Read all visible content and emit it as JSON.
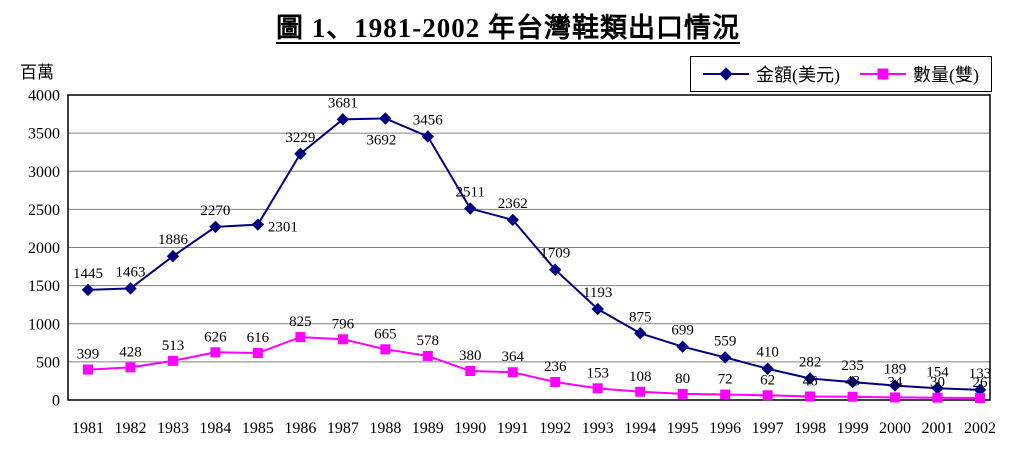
{
  "title": "圖 1、1981-2002 年台灣鞋類出口情況",
  "y_axis_unit": "百萬",
  "colors": {
    "amount_series": "#000080",
    "quantity_series": "#FF00FF",
    "gridline": "#808080",
    "plot_border": "#000000"
  },
  "legend": {
    "amount_label": "金額(美元)",
    "quantity_label": "數量(雙)"
  },
  "chart_data": {
    "type": "line",
    "title": "圖 1、1981-2002 年台灣鞋類出口情況",
    "ylabel": "百萬",
    "xlabel": "",
    "ylim": [
      0,
      4000
    ],
    "ytick_step": 500,
    "grid": true,
    "legend_position": "top-right",
    "categories": [
      "1981",
      "1982",
      "1983",
      "1984",
      "1985",
      "1986",
      "1987",
      "1988",
      "1989",
      "1990",
      "1991",
      "1992",
      "1993",
      "1994",
      "1995",
      "1996",
      "1997",
      "1998",
      "1999",
      "2000",
      "2001",
      "2002"
    ],
    "series": [
      {
        "name": "金額(美元)",
        "color": "#000080",
        "marker": "diamond",
        "values": [
          1445,
          1463,
          1886,
          2270,
          2301,
          3229,
          3681,
          3692,
          3456,
          2511,
          2362,
          1709,
          1193,
          875,
          699,
          559,
          410,
          282,
          235,
          189,
          154,
          133
        ]
      },
      {
        "name": "數量(雙)",
        "color": "#FF00FF",
        "marker": "square",
        "values": [
          399,
          428,
          513,
          626,
          616,
          825,
          796,
          665,
          578,
          380,
          364,
          236,
          153,
          108,
          80,
          72,
          62,
          46,
          43,
          34,
          30,
          26
        ]
      }
    ]
  }
}
